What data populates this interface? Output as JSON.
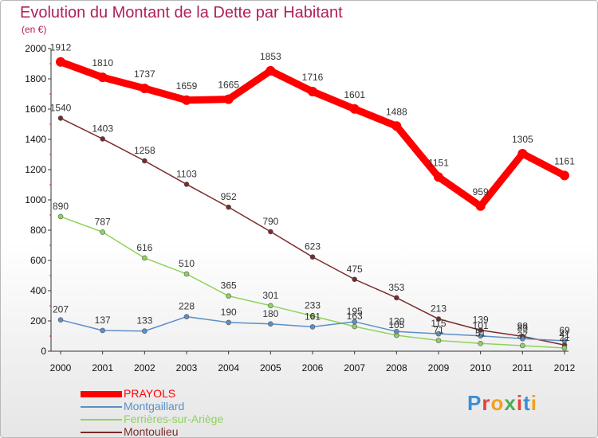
{
  "title": "Evolution du Montant de la Dette par Habitant",
  "subtitle": "(en €)",
  "logo": {
    "text": "Proxiti",
    "colors": [
      "#3b8ed8",
      "#e5423a",
      "#f0a020",
      "#4caf50",
      "#e5423a",
      "#3b8ed8",
      "#f0a020"
    ]
  },
  "chart_data": {
    "type": "line",
    "x": [
      "2000",
      "2001",
      "2002",
      "2003",
      "2004",
      "2005",
      "2006",
      "2007",
      "2008",
      "2009",
      "2010",
      "2011",
      "2012"
    ],
    "ylim": [
      0,
      2000
    ],
    "yticks": [
      "0",
      "200",
      "400",
      "600",
      "800",
      "1000",
      "1200",
      "1400",
      "1600",
      "1800",
      "2000"
    ],
    "grid": false,
    "legend_position": "bottom-left",
    "series": [
      {
        "name": "PRAYOLS",
        "color": "#ff0000",
        "values": [
          1912,
          1810,
          1737,
          1659,
          1665,
          1853,
          1716,
          1601,
          1488,
          1151,
          959,
          1305,
          1161
        ],
        "labels": [
          "1912",
          "1810",
          "1737",
          "1659",
          "1665",
          "1853",
          "1716",
          "1601",
          "1488",
          "1151",
          "959",
          "1305",
          "1161"
        ]
      },
      {
        "name": "Montgaillard",
        "color": "#5b8fc7",
        "values": [
          207,
          137,
          133,
          228,
          190,
          180,
          161,
          195,
          130,
          115,
          101,
          83,
          69
        ],
        "labels": [
          "207",
          "137",
          "133",
          "228",
          "190",
          "180",
          "161",
          "195",
          "130",
          "115",
          "101",
          "83",
          "69"
        ]
      },
      {
        "name": "Ferrières-sur-Ariège",
        "color": "#8ed35a",
        "values": [
          890,
          787,
          616,
          510,
          365,
          301,
          233,
          163,
          105,
          71,
          51,
          37,
          21
        ],
        "labels": [
          "890",
          "787",
          "616",
          "510",
          "365",
          "301",
          "233",
          "163",
          "105",
          "71",
          "51",
          "37",
          "21"
        ]
      },
      {
        "name": "Montoulieu",
        "color": "#7a2a2a",
        "values": [
          1540,
          1403,
          1258,
          1103,
          952,
          790,
          623,
          475,
          353,
          213,
          139,
          98,
          41
        ],
        "labels": [
          "1540",
          "1403",
          "1258",
          "1103",
          "952",
          "790",
          "623",
          "475",
          "353",
          "213",
          "139",
          "98",
          "41"
        ]
      }
    ]
  }
}
